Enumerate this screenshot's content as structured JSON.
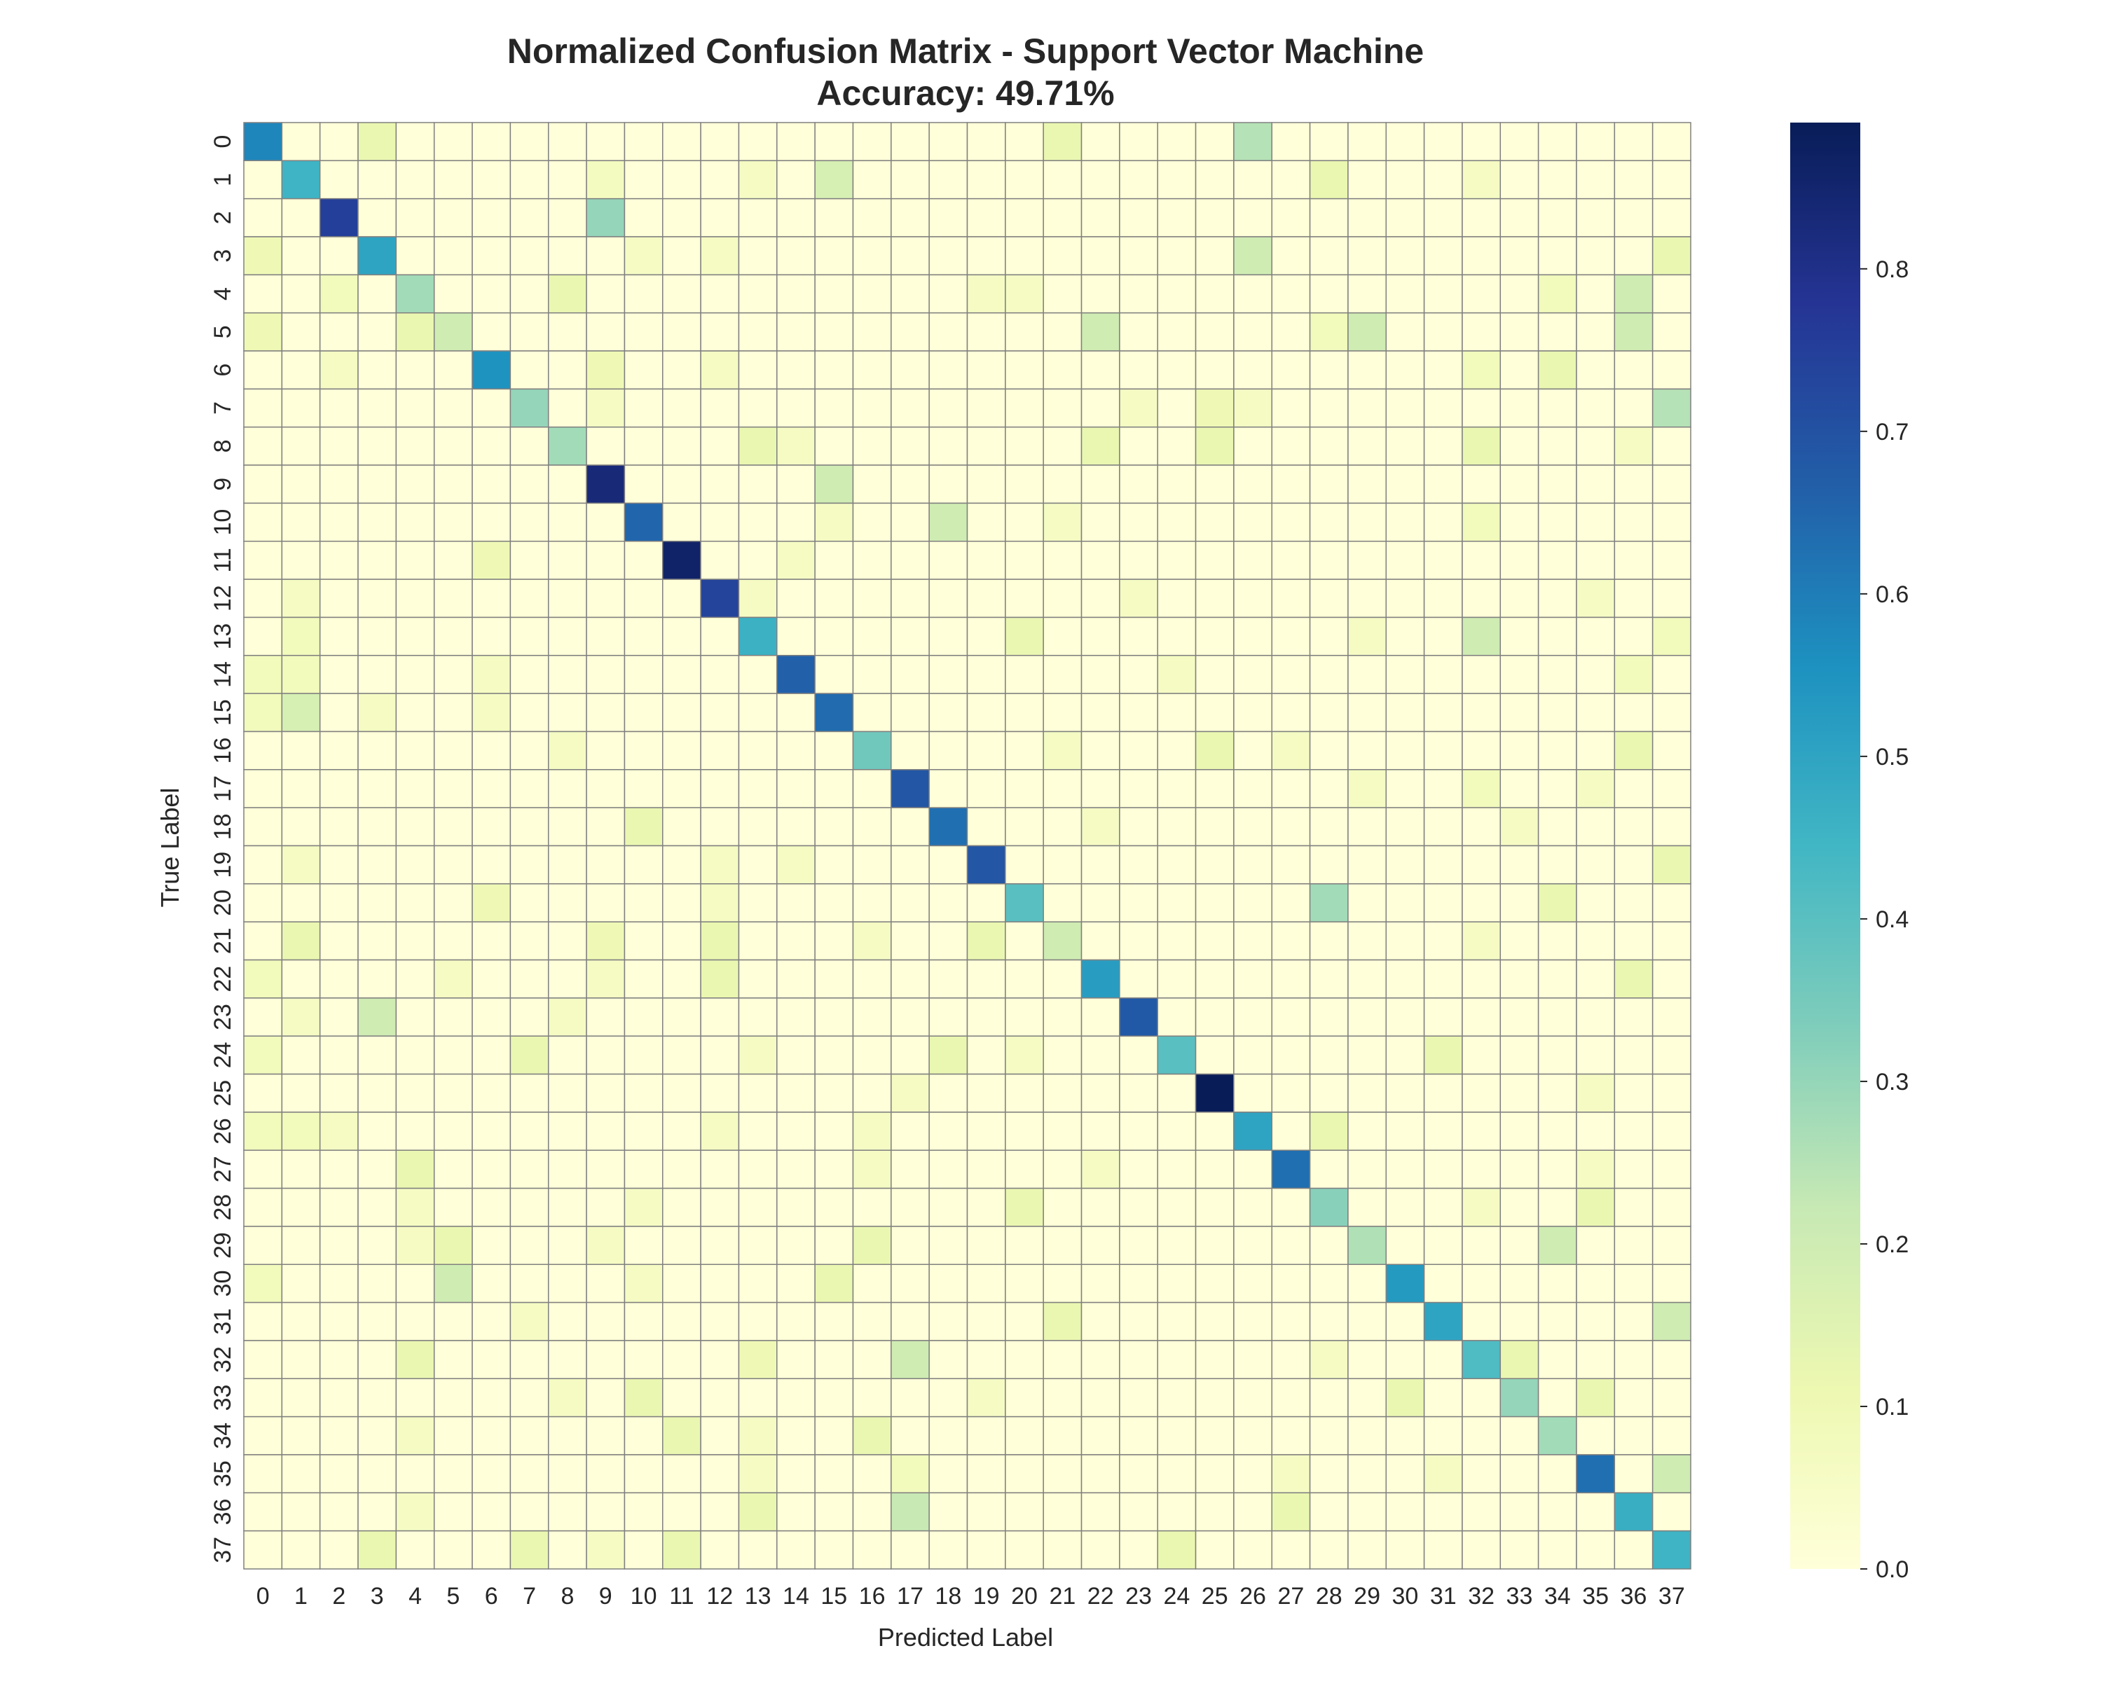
{
  "chart_data": {
    "type": "heatmap",
    "title": "Normalized Confusion Matrix - Support Vector Machine",
    "subtitle": "Accuracy: 49.71%",
    "xlabel": "Predicted Label",
    "ylabel": "True Label",
    "labels": [
      "0",
      "1",
      "2",
      "3",
      "4",
      "5",
      "6",
      "7",
      "8",
      "9",
      "10",
      "11",
      "12",
      "13",
      "14",
      "15",
      "16",
      "17",
      "18",
      "19",
      "20",
      "21",
      "22",
      "23",
      "24",
      "25",
      "26",
      "27",
      "28",
      "29",
      "30",
      "31",
      "32",
      "33",
      "34",
      "35",
      "36",
      "37"
    ],
    "diagonal": [
      0.58,
      0.45,
      0.75,
      0.5,
      0.28,
      0.2,
      0.55,
      0.3,
      0.28,
      0.83,
      0.65,
      0.86,
      0.74,
      0.46,
      0.66,
      0.64,
      0.36,
      0.69,
      0.63,
      0.69,
      0.4,
      0.2,
      0.52,
      0.68,
      0.4,
      0.89,
      0.5,
      0.63,
      0.32,
      0.26,
      0.53,
      0.5,
      0.42,
      0.3,
      0.28,
      0.63,
      0.47,
      0.45
    ],
    "off_diagonal": [
      [
        0,
        3,
        0.12
      ],
      [
        0,
        21,
        0.12
      ],
      [
        0,
        26,
        0.25
      ],
      [
        1,
        15,
        0.18
      ],
      [
        1,
        28,
        0.12
      ],
      [
        1,
        9,
        0.07
      ],
      [
        1,
        13,
        0.06
      ],
      [
        1,
        32,
        0.06
      ],
      [
        2,
        9,
        0.3
      ],
      [
        3,
        26,
        0.2
      ],
      [
        3,
        37,
        0.12
      ],
      [
        3,
        0,
        0.1
      ],
      [
        3,
        12,
        0.06
      ],
      [
        3,
        10,
        0.06
      ],
      [
        4,
        36,
        0.2
      ],
      [
        4,
        8,
        0.12
      ],
      [
        4,
        34,
        0.08
      ],
      [
        4,
        2,
        0.08
      ],
      [
        4,
        19,
        0.06
      ],
      [
        4,
        20,
        0.06
      ],
      [
        5,
        22,
        0.2
      ],
      [
        5,
        29,
        0.2
      ],
      [
        5,
        36,
        0.2
      ],
      [
        5,
        4,
        0.12
      ],
      [
        5,
        0,
        0.1
      ],
      [
        5,
        28,
        0.08
      ],
      [
        6,
        34,
        0.12
      ],
      [
        6,
        9,
        0.1
      ],
      [
        6,
        32,
        0.08
      ],
      [
        6,
        2,
        0.06
      ],
      [
        6,
        12,
        0.06
      ],
      [
        7,
        37,
        0.25
      ],
      [
        7,
        25,
        0.1
      ],
      [
        7,
        23,
        0.06
      ],
      [
        7,
        26,
        0.06
      ],
      [
        7,
        9,
        0.06
      ],
      [
        8,
        13,
        0.12
      ],
      [
        8,
        22,
        0.12
      ],
      [
        8,
        25,
        0.12
      ],
      [
        8,
        32,
        0.12
      ],
      [
        8,
        14,
        0.06
      ],
      [
        8,
        36,
        0.06
      ],
      [
        9,
        15,
        0.2
      ],
      [
        10,
        18,
        0.2
      ],
      [
        10,
        32,
        0.08
      ],
      [
        10,
        15,
        0.06
      ],
      [
        10,
        21,
        0.06
      ],
      [
        11,
        6,
        0.1
      ],
      [
        11,
        14,
        0.06
      ],
      [
        12,
        13,
        0.06
      ],
      [
        12,
        23,
        0.06
      ],
      [
        12,
        35,
        0.06
      ],
      [
        12,
        1,
        0.06
      ],
      [
        13,
        32,
        0.2
      ],
      [
        13,
        20,
        0.12
      ],
      [
        13,
        1,
        0.08
      ],
      [
        13,
        37,
        0.08
      ],
      [
        13,
        29,
        0.06
      ],
      [
        14,
        0,
        0.08
      ],
      [
        14,
        1,
        0.08
      ],
      [
        14,
        36,
        0.08
      ],
      [
        14,
        24,
        0.06
      ],
      [
        14,
        6,
        0.06
      ],
      [
        15,
        1,
        0.18
      ],
      [
        15,
        0,
        0.08
      ],
      [
        15,
        3,
        0.06
      ],
      [
        15,
        6,
        0.06
      ],
      [
        16,
        25,
        0.12
      ],
      [
        16,
        36,
        0.12
      ],
      [
        16,
        21,
        0.06
      ],
      [
        16,
        27,
        0.06
      ],
      [
        16,
        8,
        0.06
      ],
      [
        17,
        29,
        0.06
      ],
      [
        17,
        32,
        0.08
      ],
      [
        17,
        35,
        0.06
      ],
      [
        18,
        10,
        0.12
      ],
      [
        18,
        33,
        0.06
      ],
      [
        18,
        22,
        0.06
      ],
      [
        19,
        37,
        0.12
      ],
      [
        19,
        1,
        0.06
      ],
      [
        19,
        12,
        0.06
      ],
      [
        19,
        14,
        0.06
      ],
      [
        20,
        28,
        0.28
      ],
      [
        20,
        6,
        0.1
      ],
      [
        20,
        34,
        0.12
      ],
      [
        20,
        12,
        0.06
      ],
      [
        21,
        1,
        0.12
      ],
      [
        21,
        9,
        0.1
      ],
      [
        21,
        12,
        0.12
      ],
      [
        21,
        19,
        0.12
      ],
      [
        21,
        16,
        0.06
      ],
      [
        21,
        32,
        0.06
      ],
      [
        22,
        12,
        0.12
      ],
      [
        22,
        36,
        0.12
      ],
      [
        22,
        0,
        0.08
      ],
      [
        22,
        9,
        0.06
      ],
      [
        22,
        5,
        0.06
      ],
      [
        23,
        3,
        0.2
      ],
      [
        23,
        1,
        0.06
      ],
      [
        23,
        8,
        0.06
      ],
      [
        24,
        7,
        0.12
      ],
      [
        24,
        18,
        0.12
      ],
      [
        24,
        31,
        0.12
      ],
      [
        24,
        0,
        0.08
      ],
      [
        24,
        13,
        0.06
      ],
      [
        24,
        20,
        0.06
      ],
      [
        25,
        17,
        0.06
      ],
      [
        25,
        35,
        0.06
      ],
      [
        26,
        28,
        0.12
      ],
      [
        26,
        0,
        0.08
      ],
      [
        26,
        1,
        0.08
      ],
      [
        26,
        2,
        0.06
      ],
      [
        26,
        16,
        0.06
      ],
      [
        26,
        12,
        0.06
      ],
      [
        27,
        4,
        0.12
      ],
      [
        27,
        16,
        0.06
      ],
      [
        27,
        22,
        0.06
      ],
      [
        27,
        35,
        0.06
      ],
      [
        28,
        20,
        0.12
      ],
      [
        28,
        35,
        0.12
      ],
      [
        28,
        10,
        0.06
      ],
      [
        28,
        32,
        0.06
      ],
      [
        28,
        4,
        0.06
      ],
      [
        29,
        34,
        0.2
      ],
      [
        29,
        16,
        0.12
      ],
      [
        29,
        5,
        0.12
      ],
      [
        29,
        4,
        0.06
      ],
      [
        29,
        9,
        0.06
      ],
      [
        30,
        5,
        0.2
      ],
      [
        30,
        15,
        0.12
      ],
      [
        30,
        0,
        0.08
      ],
      [
        30,
        10,
        0.06
      ],
      [
        31,
        37,
        0.2
      ],
      [
        31,
        21,
        0.12
      ],
      [
        31,
        7,
        0.06
      ],
      [
        32,
        17,
        0.2
      ],
      [
        32,
        4,
        0.12
      ],
      [
        32,
        13,
        0.1
      ],
      [
        32,
        33,
        0.12
      ],
      [
        32,
        28,
        0.06
      ],
      [
        33,
        10,
        0.12
      ],
      [
        33,
        30,
        0.12
      ],
      [
        33,
        35,
        0.12
      ],
      [
        33,
        8,
        0.06
      ],
      [
        33,
        19,
        0.06
      ],
      [
        34,
        11,
        0.12
      ],
      [
        34,
        16,
        0.12
      ],
      [
        34,
        13,
        0.06
      ],
      [
        34,
        4,
        0.06
      ],
      [
        35,
        37,
        0.2
      ],
      [
        35,
        17,
        0.08
      ],
      [
        35,
        13,
        0.06
      ],
      [
        35,
        27,
        0.06
      ],
      [
        35,
        31,
        0.06
      ],
      [
        36,
        17,
        0.22
      ],
      [
        36,
        13,
        0.12
      ],
      [
        36,
        27,
        0.12
      ],
      [
        36,
        4,
        0.06
      ],
      [
        37,
        24,
        0.12
      ],
      [
        37,
        3,
        0.12
      ],
      [
        37,
        7,
        0.12
      ],
      [
        37,
        11,
        0.12
      ],
      [
        37,
        9,
        0.06
      ]
    ],
    "colorbar": {
      "range": [
        0.0,
        0.89
      ],
      "ticks": [
        "0.0",
        "0.1",
        "0.2",
        "0.3",
        "0.4",
        "0.5",
        "0.6",
        "0.7",
        "0.8"
      ],
      "colormap": "YlGnBu",
      "colors": [
        "#ffffd9",
        "#edf8b1",
        "#c7e9b4",
        "#7fcdbb",
        "#41b6c4",
        "#1d91c0",
        "#225ea8",
        "#253494",
        "#081d58"
      ]
    },
    "grid_line_color": "#808080"
  }
}
